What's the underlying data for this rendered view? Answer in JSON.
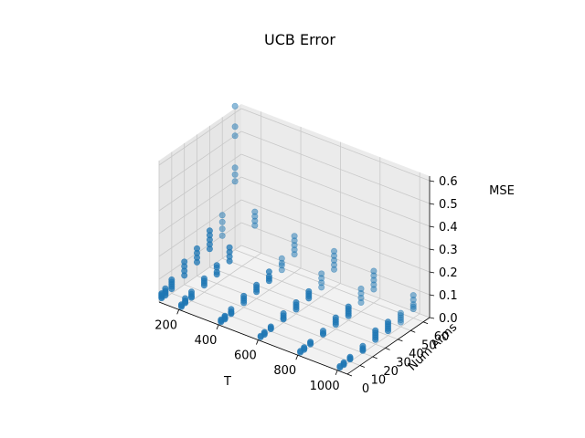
{
  "chart_data": {
    "type": "scatter",
    "title": "UCB Error",
    "xlabel": "T",
    "ylabel": "Num Arms",
    "zlabel": "MSE",
    "xlim": [
      100,
      1050
    ],
    "ylim": [
      0,
      65
    ],
    "zlim": [
      0,
      0.62
    ],
    "xticks": [
      200,
      400,
      600,
      800,
      1000
    ],
    "yticks": [
      0,
      10,
      20,
      30,
      40,
      50,
      60
    ],
    "zticks": [
      0.0,
      0.1,
      0.2,
      0.3,
      0.4,
      0.5,
      0.6
    ],
    "xtick_labels": [
      "200",
      "400",
      "600",
      "800",
      "1000"
    ],
    "ytick_labels": [
      "0",
      "10",
      "20",
      "30",
      "40",
      "50",
      "60"
    ],
    "ztick_labels": [
      "0.0",
      "0.1",
      "0.2",
      "0.3",
      "0.4",
      "0.5",
      "0.6"
    ],
    "marker_color": "#1f77b4",
    "grid": true,
    "points": [
      {
        "x": 100,
        "y": 2,
        "z": [
          0.01,
          0.015,
          0.02,
          0.025,
          0.03
        ]
      },
      {
        "x": 100,
        "y": 5,
        "z": [
          0.01,
          0.018,
          0.025,
          0.03,
          0.04
        ]
      },
      {
        "x": 100,
        "y": 10,
        "z": [
          0.02,
          0.03,
          0.04,
          0.05,
          0.06
        ]
      },
      {
        "x": 100,
        "y": 20,
        "z": [
          0.04,
          0.06,
          0.08,
          0.1
        ]
      },
      {
        "x": 100,
        "y": 30,
        "z": [
          0.06,
          0.08,
          0.1,
          0.12
        ]
      },
      {
        "x": 100,
        "y": 40,
        "z": [
          0.08,
          0.1,
          0.12,
          0.14,
          0.16
        ]
      },
      {
        "x": 100,
        "y": 50,
        "z": [
          0.1,
          0.13,
          0.16,
          0.19
        ]
      },
      {
        "x": 100,
        "y": 60,
        "z": [
          0.3,
          0.33,
          0.36,
          0.5,
          0.54,
          0.63
        ]
      },
      {
        "x": 200,
        "y": 2,
        "z": [
          0.005,
          0.01,
          0.015
        ]
      },
      {
        "x": 200,
        "y": 5,
        "z": [
          0.01,
          0.015,
          0.02,
          0.03
        ]
      },
      {
        "x": 200,
        "y": 10,
        "z": [
          0.015,
          0.02,
          0.03,
          0.04
        ]
      },
      {
        "x": 200,
        "y": 20,
        "z": [
          0.03,
          0.04,
          0.05,
          0.06
        ]
      },
      {
        "x": 200,
        "y": 30,
        "z": [
          0.04,
          0.05,
          0.07,
          0.08
        ]
      },
      {
        "x": 200,
        "y": 40,
        "z": [
          0.06,
          0.08,
          0.1,
          0.12
        ]
      },
      {
        "x": 200,
        "y": 60,
        "z": [
          0.14,
          0.16,
          0.18,
          0.2
        ]
      },
      {
        "x": 400,
        "y": 2,
        "z": [
          0.005,
          0.01,
          0.015
        ]
      },
      {
        "x": 400,
        "y": 5,
        "z": [
          0.005,
          0.01,
          0.015,
          0.02
        ]
      },
      {
        "x": 400,
        "y": 10,
        "z": [
          0.01,
          0.015,
          0.02,
          0.03
        ]
      },
      {
        "x": 400,
        "y": 20,
        "z": [
          0.02,
          0.03,
          0.04,
          0.05
        ]
      },
      {
        "x": 400,
        "y": 30,
        "z": [
          0.03,
          0.04,
          0.05,
          0.06
        ]
      },
      {
        "x": 400,
        "y": 40,
        "z": [
          0.04,
          0.05,
          0.06,
          0.08
        ]
      },
      {
        "x": 400,
        "y": 50,
        "z": [
          0.05,
          0.07,
          0.08,
          0.1
        ]
      },
      {
        "x": 400,
        "y": 60,
        "z": [
          0.08,
          0.1,
          0.12,
          0.14,
          0.16
        ]
      },
      {
        "x": 600,
        "y": 2,
        "z": [
          0.005,
          0.01
        ]
      },
      {
        "x": 600,
        "y": 5,
        "z": [
          0.005,
          0.01,
          0.015
        ]
      },
      {
        "x": 600,
        "y": 10,
        "z": [
          0.01,
          0.015,
          0.02
        ]
      },
      {
        "x": 600,
        "y": 20,
        "z": [
          0.015,
          0.02,
          0.03,
          0.04
        ]
      },
      {
        "x": 600,
        "y": 30,
        "z": [
          0.02,
          0.03,
          0.04,
          0.05
        ]
      },
      {
        "x": 600,
        "y": 40,
        "z": [
          0.03,
          0.04,
          0.05,
          0.06
        ]
      },
      {
        "x": 600,
        "y": 50,
        "z": [
          0.04,
          0.06,
          0.08,
          0.1
        ]
      },
      {
        "x": 600,
        "y": 60,
        "z": [
          0.08,
          0.1,
          0.12,
          0.14,
          0.16
        ]
      },
      {
        "x": 800,
        "y": 2,
        "z": [
          0.005,
          0.01
        ]
      },
      {
        "x": 800,
        "y": 5,
        "z": [
          0.005,
          0.01,
          0.015
        ]
      },
      {
        "x": 800,
        "y": 10,
        "z": [
          0.01,
          0.015,
          0.02
        ]
      },
      {
        "x": 800,
        "y": 20,
        "z": [
          0.015,
          0.02,
          0.03
        ]
      },
      {
        "x": 800,
        "y": 30,
        "z": [
          0.02,
          0.03,
          0.04,
          0.05
        ]
      },
      {
        "x": 800,
        "y": 40,
        "z": [
          0.02,
          0.03,
          0.04,
          0.05,
          0.06
        ]
      },
      {
        "x": 800,
        "y": 50,
        "z": [
          0.04,
          0.06,
          0.08,
          0.1
        ]
      },
      {
        "x": 800,
        "y": 60,
        "z": [
          0.06,
          0.08,
          0.1,
          0.12,
          0.14
        ]
      },
      {
        "x": 1000,
        "y": 2,
        "z": [
          0.005,
          0.01
        ]
      },
      {
        "x": 1000,
        "y": 5,
        "z": [
          0.005,
          0.01,
          0.015
        ]
      },
      {
        "x": 1000,
        "y": 10,
        "z": [
          0.01,
          0.015,
          0.02
        ]
      },
      {
        "x": 1000,
        "y": 20,
        "z": [
          0.01,
          0.015,
          0.02,
          0.03
        ]
      },
      {
        "x": 1000,
        "y": 30,
        "z": [
          0.02,
          0.03,
          0.04,
          0.05,
          0.06
        ]
      },
      {
        "x": 1000,
        "y": 40,
        "z": [
          0.02,
          0.03,
          0.04,
          0.05,
          0.06
        ]
      },
      {
        "x": 1000,
        "y": 50,
        "z": [
          0.02,
          0.03,
          0.04,
          0.05,
          0.06
        ]
      },
      {
        "x": 1000,
        "y": 60,
        "z": [
          0.04,
          0.05,
          0.06,
          0.08,
          0.1
        ]
      }
    ]
  }
}
